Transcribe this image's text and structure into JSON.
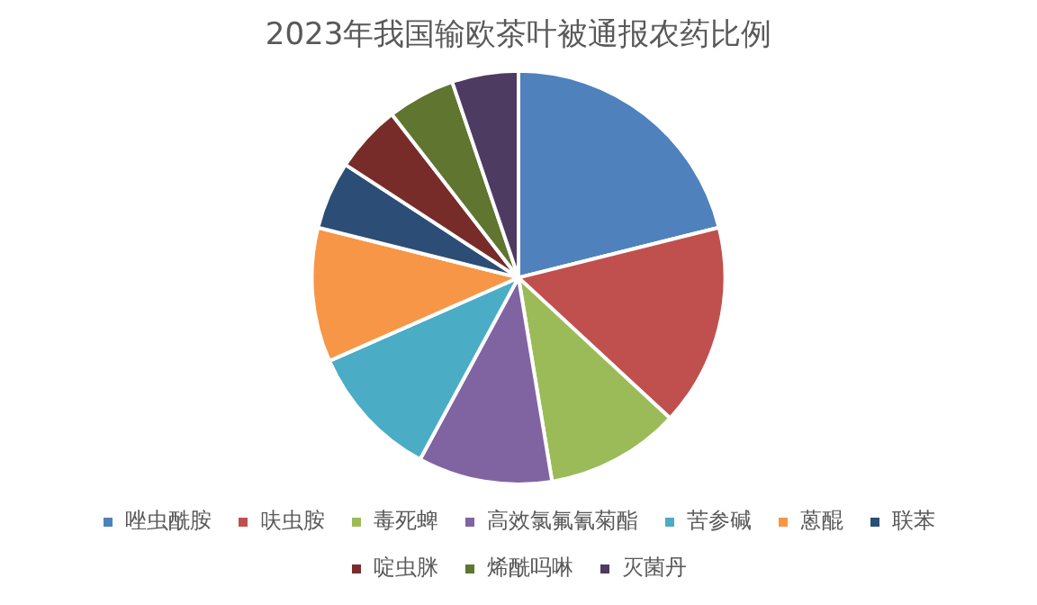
{
  "chart_data": {
    "type": "pie",
    "title": "2023年我国输欧茶叶被通报农药比例",
    "categories": [
      "唑虫酰胺",
      "呋虫胺",
      "毒死蜱",
      "高效氯氟氰菊酯",
      "苦参碱",
      "蒽醌",
      "联苯",
      "啶虫脒",
      "烯酰吗啉",
      "灭菌丹"
    ],
    "values": [
      21.1,
      15.8,
      10.5,
      10.5,
      10.5,
      10.5,
      5.3,
      5.3,
      5.3,
      5.2
    ],
    "colors": [
      "#4f81bd",
      "#c0504d",
      "#9bbb59",
      "#8064a2",
      "#4bacc6",
      "#f79646",
      "#2c4d75",
      "#772c2a",
      "#5f7530",
      "#4d3b62"
    ],
    "legend": "bottom"
  }
}
